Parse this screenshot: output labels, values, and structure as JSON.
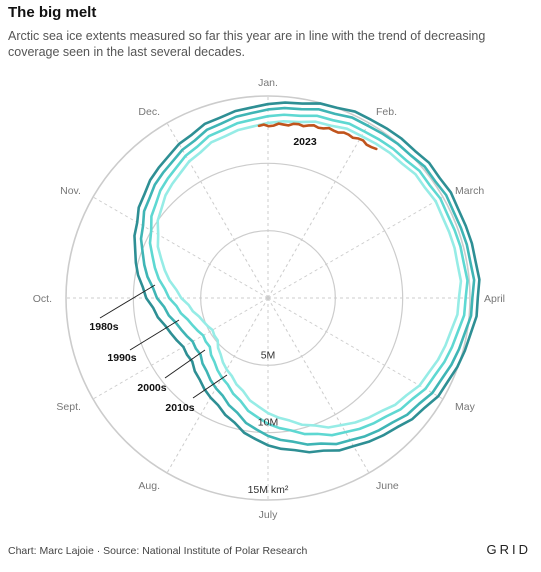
{
  "header": {
    "title": "The big melt",
    "subtitle": "Arctic sea ice extents measured so far this year are in line with the trend of decreasing coverage seen in the last several decades."
  },
  "footer": {
    "source": "Chart: Marc Lajoie · Source: National Institute of Polar Research",
    "logo": "GRID"
  },
  "colors": {
    "1980s": "#2e8f94",
    "1990s": "#3fb5b5",
    "2000s": "#5ed8d2",
    "2010s": "#96ece6",
    "2023": "#c0541c",
    "grid": "#cccccc"
  },
  "chart_data": {
    "type": "line",
    "polar": true,
    "title": "",
    "angular_labels": [
      "Jan.",
      "Feb.",
      "March",
      "April",
      "May",
      "June",
      "July",
      "Aug.",
      "Sept.",
      "Oct.",
      "Nov.",
      "Dec."
    ],
    "radial_ticks": [
      {
        "value": 5,
        "label": "5M"
      },
      {
        "value": 10,
        "label": "10M"
      },
      {
        "value": 15,
        "label": "15M km²"
      }
    ],
    "radial_range": [
      0,
      15
    ],
    "grid": true,
    "series": [
      {
        "name": "1980s",
        "color": "#2e8f94",
        "values": [
          14.4,
          15.3,
          15.6,
          15.6,
          14.5,
          12.7,
          10.9,
          8.5,
          7.3,
          9.0,
          11.3,
          13.2
        ]
      },
      {
        "name": "1990s",
        "color": "#3fb5b5",
        "values": [
          14.0,
          14.8,
          15.2,
          15.2,
          14.0,
          12.2,
          10.2,
          7.7,
          6.5,
          8.2,
          10.8,
          12.7
        ]
      },
      {
        "name": "2000s",
        "color": "#5ed8d2",
        "values": [
          13.5,
          14.3,
          14.7,
          14.7,
          13.4,
          11.5,
          9.3,
          6.8,
          5.6,
          7.3,
          10.1,
          12.2
        ]
      },
      {
        "name": "2010s",
        "color": "#96ece6",
        "values": [
          13.0,
          13.9,
          14.3,
          14.2,
          12.9,
          10.9,
          8.5,
          6.1,
          4.8,
          6.4,
          9.5,
          11.7
        ]
      },
      {
        "name": "2023",
        "color": "#c0541c",
        "values": [
          12.8,
          13.6
        ]
      }
    ]
  }
}
